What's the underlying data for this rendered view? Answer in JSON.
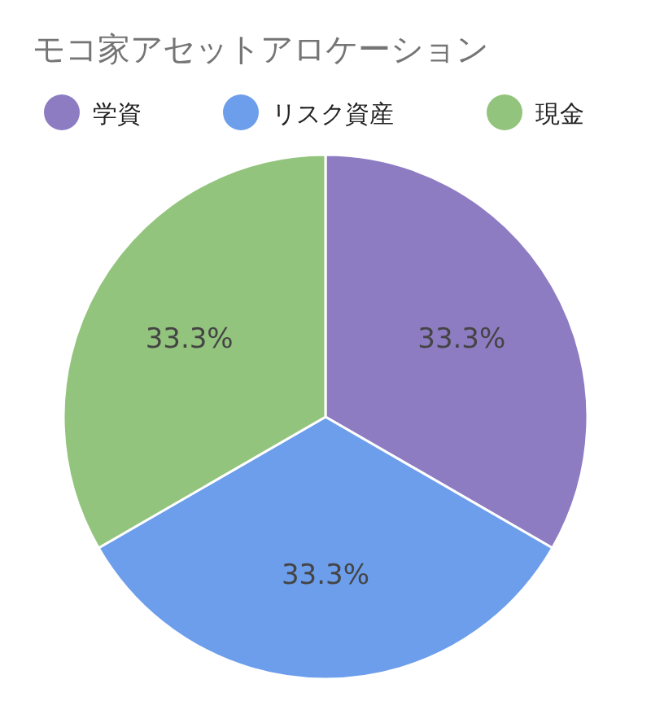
{
  "chart_data": {
    "type": "pie",
    "title": "モコ家アセットアロケーション",
    "categories": [
      "学資",
      "リスク資産",
      "現金"
    ],
    "values": [
      33.3,
      33.3,
      33.3
    ],
    "value_labels": [
      "33.3%",
      "33.3%",
      "33.3%"
    ],
    "colors": [
      "#8e7cc3",
      "#6d9eeb",
      "#93c47d"
    ],
    "legend": "top"
  }
}
